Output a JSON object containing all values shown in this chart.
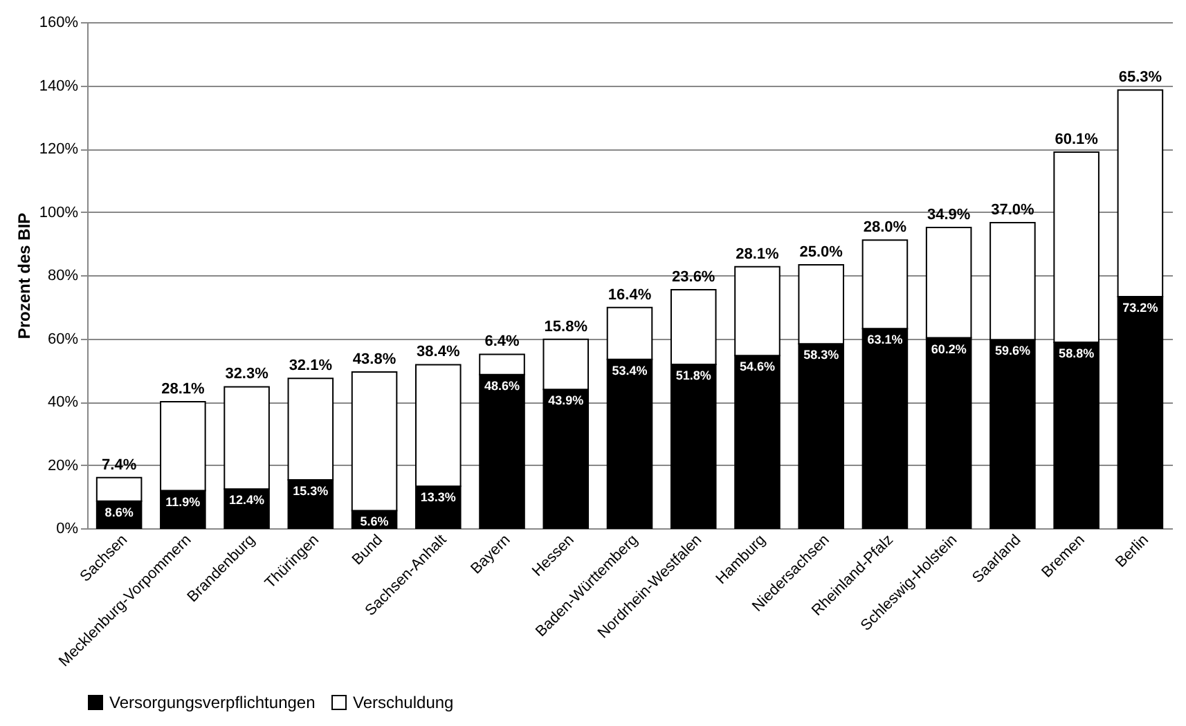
{
  "chart_data": {
    "type": "bar",
    "stacked": true,
    "ylabel": "Prozent des BIP",
    "categories": [
      "Sachsen",
      "Mecklenburg-Vorpommern",
      "Brandenburg",
      "Thüringen",
      "Bund",
      "Sachsen-Anhalt",
      "Bayern",
      "Hessen",
      "Baden-Württemberg",
      "Nordrhein-Westfalen",
      "Hamburg",
      "Niedersachsen",
      "Rheinland-Pfalz",
      "Schleswig-Holstein",
      "Saarland",
      "Bremen",
      "Berlin"
    ],
    "series": [
      {
        "name": "Versorgungsverpflichtungen",
        "color": "#000000",
        "values": [
          8.6,
          11.9,
          12.4,
          15.3,
          5.6,
          13.3,
          48.6,
          43.9,
          53.4,
          51.8,
          54.6,
          58.3,
          63.1,
          60.2,
          59.6,
          58.8,
          73.2
        ],
        "value_labels": [
          "8.6%",
          "11.9%",
          "12.4%",
          "15.3%",
          "5.6%",
          "13.3%",
          "48.6%",
          "43.9%",
          "53.4%",
          "51.8%",
          "54.6%",
          "58.3%",
          "63.1%",
          "60.2%",
          "59.6%",
          "58.8%",
          "73.2%"
        ]
      },
      {
        "name": "Verschuldung",
        "color": "#ffffff",
        "values": [
          7.4,
          28.1,
          32.3,
          32.1,
          43.8,
          38.4,
          6.4,
          15.8,
          16.4,
          23.6,
          28.1,
          25.0,
          28.0,
          34.9,
          37.0,
          60.1,
          65.3
        ],
        "value_labels": [
          "7.4%",
          "28.1%",
          "32.3%",
          "32.1%",
          "43.8%",
          "38.4%",
          "6.4%",
          "15.8%",
          "16.4%",
          "23.6%",
          "28.1%",
          "25.0%",
          "28.0%",
          "34.9%",
          "37.0%",
          "60.1%",
          "65.3%"
        ]
      }
    ],
    "ylim": [
      0,
      160
    ],
    "yticks": [
      {
        "value": 0,
        "label": "0%"
      },
      {
        "value": 20,
        "label": "20%"
      },
      {
        "value": 40,
        "label": "40%"
      },
      {
        "value": 60,
        "label": "60%"
      },
      {
        "value": 80,
        "label": "80%"
      },
      {
        "value": 100,
        "label": "100%"
      },
      {
        "value": 120,
        "label": "120%"
      },
      {
        "value": 140,
        "label": "140%"
      },
      {
        "value": 160,
        "label": "160%"
      }
    ],
    "grid": "y",
    "legend": "bottom"
  }
}
